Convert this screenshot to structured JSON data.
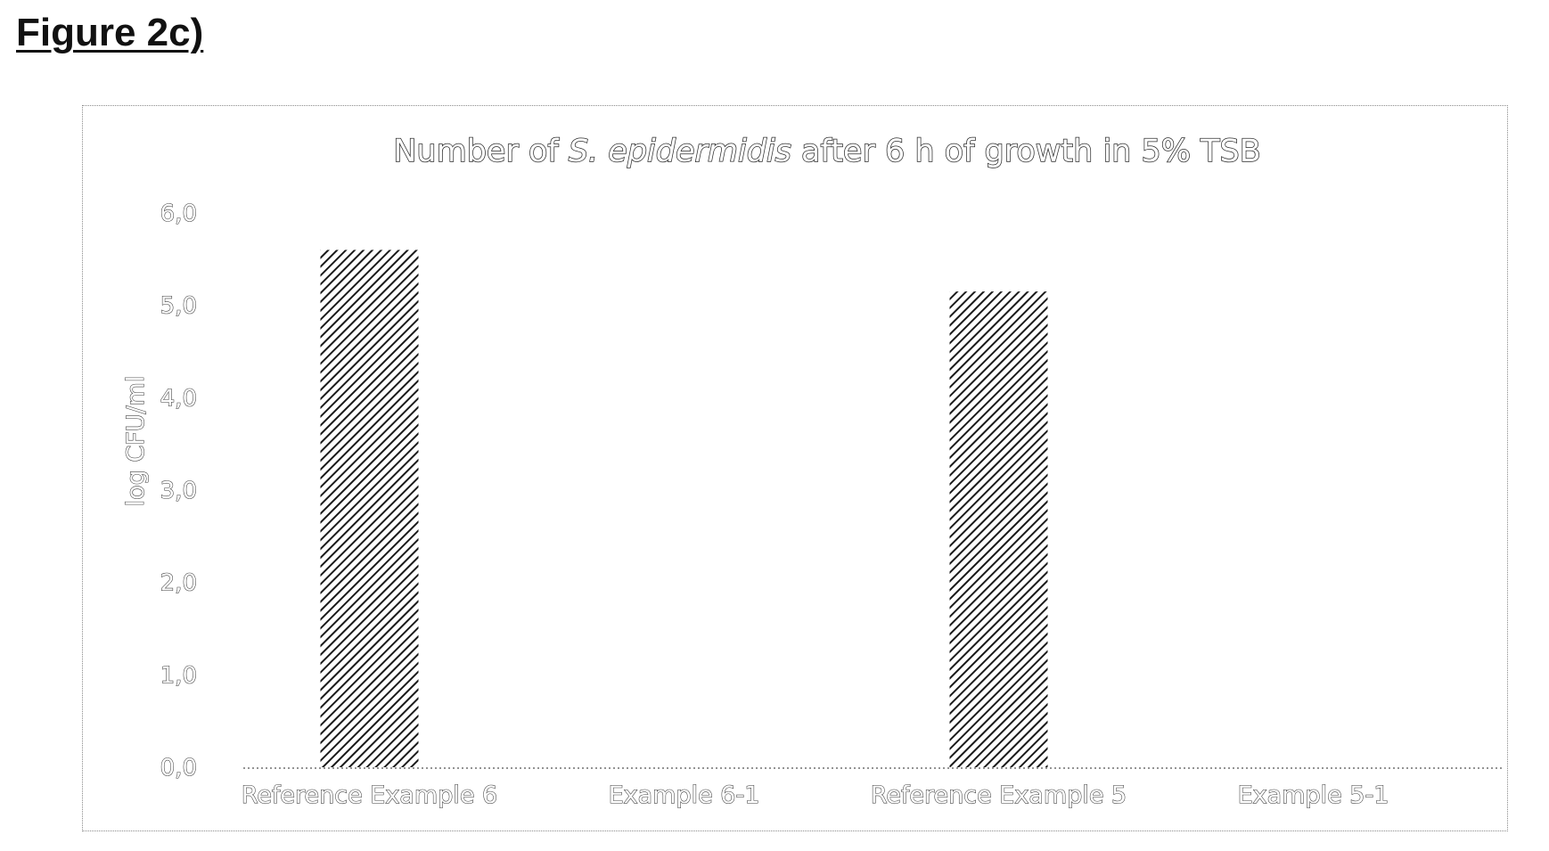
{
  "figure": {
    "label": "Figure 2c)"
  },
  "chart_data": {
    "type": "bar",
    "title": {
      "prefix": "Number of ",
      "italic": "S. epidermidis",
      "suffix": " after 6 h of growth in 5% TSB"
    },
    "xlabel": "",
    "ylabel": "log CFU/ml",
    "categories": [
      "Reference Example 6",
      "Example 6-1",
      "Reference Example 5",
      "Example 5-1"
    ],
    "values": [
      5.6,
      0,
      5.15,
      0
    ],
    "ylim": [
      0,
      6
    ],
    "yticks": [
      "0,0",
      "1,0",
      "2,0",
      "3,0",
      "4,0",
      "5,0",
      "6,0"
    ],
    "grid": false,
    "legend": "none",
    "bar_fill": "hatched",
    "colors": {
      "bar_stroke": "#1a1a1a",
      "baseline": "#555555"
    }
  }
}
